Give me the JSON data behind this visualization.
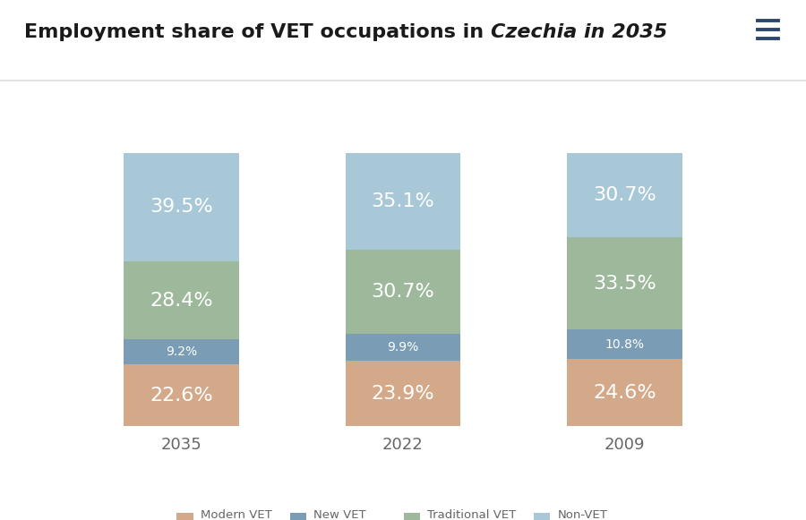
{
  "title_regular": "Employment share of VET occupations in ",
  "title_italic": "Czechia in 2035",
  "categories": [
    "2035",
    "2022",
    "2009"
  ],
  "segments": {
    "Modern VET occupations": [
      22.6,
      23.9,
      24.6
    ],
    "New VET occupations": [
      9.2,
      9.9,
      10.8
    ],
    "Traditional VET occupations": [
      28.4,
      30.7,
      33.5
    ],
    "Non-VET occupations": [
      39.5,
      35.1,
      30.7
    ]
  },
  "colors": {
    "Modern VET occupations": "#D4A98A",
    "New VET occupations": "#7A9DB5",
    "Traditional VET occupations": "#9DB89A",
    "Non-VET occupations": "#A8C8D8"
  },
  "label_fontsize_large": 16,
  "label_fontsize_small": 10,
  "bg_color": "#FFFFFF",
  "bar_width": 0.52,
  "tick_color": "#666666",
  "small_threshold": 12.0,
  "title_fontsize": 16,
  "hamburger_color": "#2C4770"
}
